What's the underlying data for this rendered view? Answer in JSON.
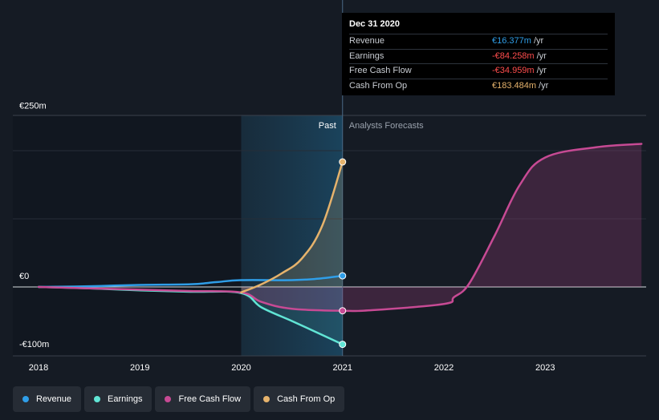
{
  "chart_data": {
    "type": "line",
    "x_label_ticks": [
      "2018",
      "2019",
      "2020",
      "2021",
      "2022",
      "2023"
    ],
    "y_tick_labels": [
      "€250m",
      "€0",
      "-€100m"
    ],
    "y_ticks": [
      250,
      0,
      -100
    ],
    "ylim": [
      -100,
      250
    ],
    "xlim": [
      2017.75,
      2023.95
    ],
    "past_label": "Past",
    "forecast_label": "Analysts Forecasts",
    "past_region": [
      2020.0,
      2021.0
    ],
    "series": [
      {
        "name": "Revenue",
        "color": "#2f9ee8",
        "points": [
          [
            2018.0,
            0
          ],
          [
            2018.5,
            1
          ],
          [
            2019.0,
            3
          ],
          [
            2019.5,
            4
          ],
          [
            2019.75,
            7
          ],
          [
            2020.0,
            10
          ],
          [
            2020.5,
            10
          ],
          [
            2020.75,
            12
          ],
          [
            2021.0,
            16.377
          ]
        ]
      },
      {
        "name": "Earnings",
        "color": "#61e5d5",
        "points": [
          [
            2018.0,
            0
          ],
          [
            2018.5,
            -2
          ],
          [
            2019.0,
            -5
          ],
          [
            2019.5,
            -7
          ],
          [
            2020.0,
            -9
          ],
          [
            2020.2,
            -30
          ],
          [
            2020.5,
            -50
          ],
          [
            2020.75,
            -67
          ],
          [
            2021.0,
            -84.258
          ]
        ]
      },
      {
        "name": "Free Cash Flow",
        "color": "#c74a94",
        "points": [
          [
            2018.0,
            0
          ],
          [
            2018.5,
            -2
          ],
          [
            2019.0,
            -4
          ],
          [
            2019.5,
            -6
          ],
          [
            2020.0,
            -8
          ],
          [
            2020.2,
            -22
          ],
          [
            2020.5,
            -32
          ],
          [
            2021.0,
            -34.959
          ],
          [
            2021.3,
            -34
          ],
          [
            2022.0,
            -25
          ],
          [
            2022.1,
            -15
          ],
          [
            2022.25,
            5
          ],
          [
            2022.5,
            75
          ],
          [
            2022.75,
            150
          ],
          [
            2023.0,
            190
          ],
          [
            2023.5,
            205
          ],
          [
            2023.95,
            210
          ]
        ]
      },
      {
        "name": "Cash From Op",
        "color": "#e6b36c",
        "points": [
          [
            2020.0,
            -8
          ],
          [
            2020.2,
            4
          ],
          [
            2020.4,
            20
          ],
          [
            2020.6,
            42
          ],
          [
            2020.8,
            90
          ],
          [
            2021.0,
            183.484
          ]
        ]
      }
    ],
    "tooltip": {
      "date": "Dec 31 2020",
      "unit": "/yr",
      "rows": [
        {
          "name": "Revenue",
          "value": "€16.377m",
          "color": "#2f9ee8"
        },
        {
          "name": "Earnings",
          "value": "-€84.258m",
          "color": "#ff4d4d"
        },
        {
          "name": "Free Cash Flow",
          "value": "-€34.959m",
          "color": "#ff4d4d"
        },
        {
          "name": "Cash From Op",
          "value": "€183.484m",
          "color": "#e6b36c"
        }
      ]
    },
    "legend": [
      {
        "name": "Revenue",
        "color": "#2f9ee8"
      },
      {
        "name": "Earnings",
        "color": "#61e5d5"
      },
      {
        "name": "Free Cash Flow",
        "color": "#c74a94"
      },
      {
        "name": "Cash From Op",
        "color": "#e6b36c"
      }
    ]
  }
}
